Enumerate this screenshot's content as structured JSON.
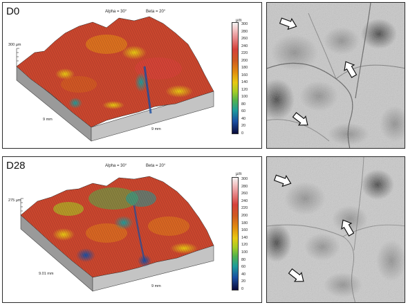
{
  "panels": [
    {
      "day": "D0",
      "alpha": "Alpha = 30°",
      "beta": "Beta = 20°",
      "unit": "µm",
      "scale": [
        "300",
        "280",
        "260",
        "240",
        "220",
        "200",
        "180",
        "160",
        "140",
        "120",
        "100",
        "80",
        "60",
        "40",
        "20",
        "0"
      ],
      "height_label": "300 µm",
      "x_label": "9 mm",
      "y_label": "9 mm"
    },
    {
      "day": "D28",
      "alpha": "Alpha = 30°",
      "beta": "Beta = 20°",
      "unit": "µm",
      "scale": [
        "300",
        "280",
        "260",
        "240",
        "220",
        "200",
        "180",
        "160",
        "140",
        "120",
        "100",
        "80",
        "60",
        "40",
        "20",
        "0"
      ],
      "height_label": "275 µm",
      "x_label": "9.01 mm",
      "y_label": "9 mm"
    }
  ]
}
